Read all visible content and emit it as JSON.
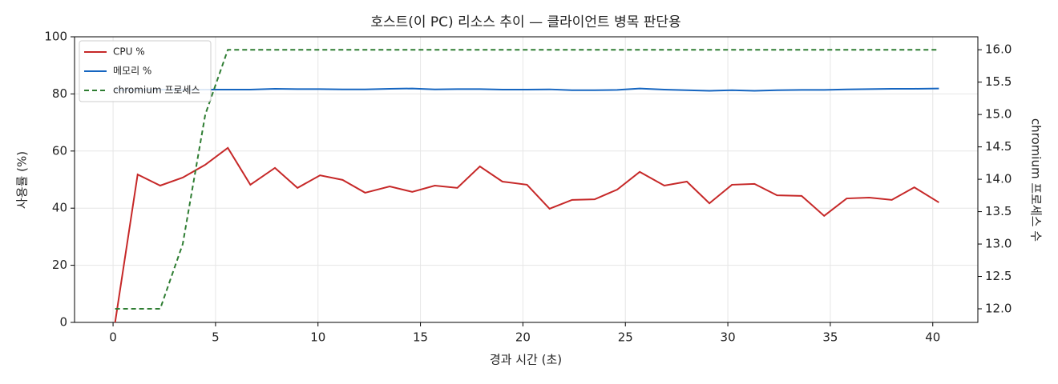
{
  "chart_data": {
    "type": "line",
    "title": "호스트(이 PC) 리소스 추이 — 클라이언트 병목 판단용",
    "xlabel": "경과 시간 (초)",
    "ylabel": "사용률 (%)",
    "y2label": "chromium 프로세스 수",
    "x": [
      0.1,
      1.2,
      2.3,
      3.4,
      4.5,
      5.6,
      6.7,
      7.9,
      9.0,
      10.1,
      11.2,
      12.3,
      13.5,
      14.6,
      15.7,
      16.8,
      17.9,
      19.0,
      20.2,
      21.3,
      22.4,
      23.5,
      24.6,
      25.7,
      26.9,
      28.0,
      29.1,
      30.2,
      31.3,
      32.4,
      33.6,
      34.7,
      35.8,
      36.9,
      38.0,
      39.1,
      40.3
    ],
    "series": [
      {
        "name": "CPU %",
        "color": "#c62828",
        "linestyle": "solid",
        "axis": "y",
        "values": [
          0,
          51.8,
          47.9,
          50.7,
          55.2,
          61.1,
          48.2,
          54.1,
          47.1,
          51.5,
          49.9,
          45.4,
          47.6,
          45.7,
          47.9,
          47.1,
          54.6,
          49.3,
          48.2,
          39.8,
          42.9,
          43.1,
          46.5,
          52.7,
          47.9,
          49.3,
          41.7,
          48.2,
          48.5,
          44.5,
          44.3,
          37.3,
          43.4,
          43.7,
          42.9,
          47.3,
          42.0
        ]
      },
      {
        "name": "메모리 %",
        "color": "#1565c0",
        "linestyle": "solid",
        "axis": "y",
        "values": [
          81.4,
          81.4,
          81.5,
          81.4,
          81.5,
          81.5,
          81.5,
          81.8,
          81.7,
          81.7,
          81.6,
          81.6,
          81.8,
          81.9,
          81.6,
          81.7,
          81.7,
          81.5,
          81.5,
          81.6,
          81.3,
          81.3,
          81.4,
          81.9,
          81.5,
          81.3,
          81.1,
          81.3,
          81.1,
          81.3,
          81.4,
          81.4,
          81.6,
          81.7,
          81.8,
          81.8,
          81.9
        ]
      },
      {
        "name": "chromium 프로세스",
        "color": "#2e7d32",
        "linestyle": "dashed",
        "axis": "y2",
        "values": [
          12,
          12,
          12,
          13,
          15,
          16,
          16,
          16,
          16,
          16,
          16,
          16,
          16,
          16,
          16,
          16,
          16,
          16,
          16,
          16,
          16,
          16,
          16,
          16,
          16,
          16,
          16,
          16,
          16,
          16,
          16,
          16,
          16,
          16,
          16,
          16,
          16
        ]
      }
    ],
    "xlim": [
      -1.88,
      42.2
    ],
    "xticks": [
      0,
      5,
      10,
      15,
      20,
      25,
      30,
      35,
      40
    ],
    "ylim": [
      0,
      100
    ],
    "yticks": [
      0,
      20,
      40,
      60,
      80,
      100
    ],
    "y2lim": [
      11.79,
      16.2
    ],
    "y2ticks": [
      {
        "value": 12,
        "label": "12.0"
      },
      {
        "value": 12.5,
        "label": "12.5"
      },
      {
        "value": 13,
        "label": "13.0"
      },
      {
        "value": 13.5,
        "label": "13.5"
      },
      {
        "value": 14,
        "label": "14.0"
      },
      {
        "value": 14.5,
        "label": "14.5"
      },
      {
        "value": 15,
        "label": "15.0"
      },
      {
        "value": 15.5,
        "label": "15.5"
      },
      {
        "value": 16,
        "label": "16.0"
      }
    ],
    "grid": true,
    "legend": "upper left"
  }
}
